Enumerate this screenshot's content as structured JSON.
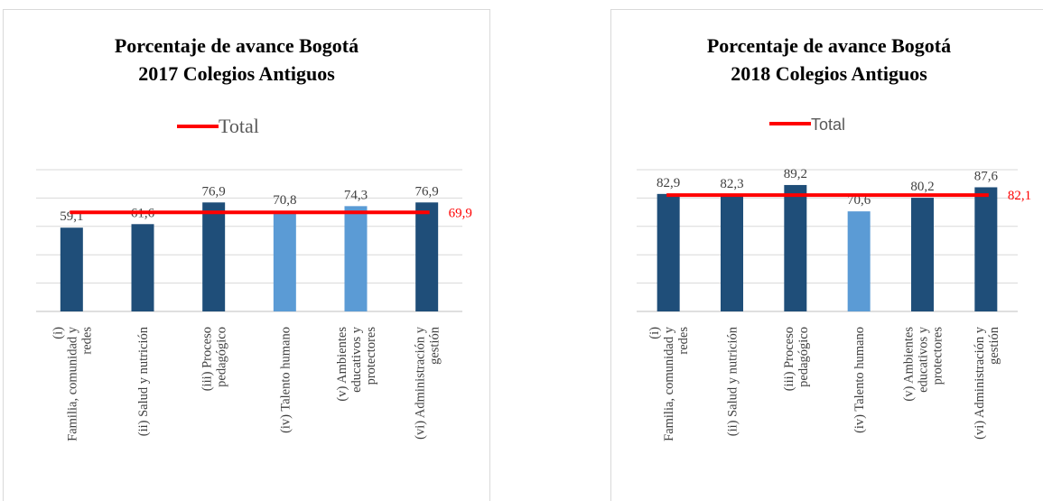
{
  "chart_data": [
    {
      "type": "bar",
      "title": [
        "Porcentaje de avance Bogotá",
        "2017 Colegios Antiguos"
      ],
      "categories": [
        [
          "(i)",
          "Familia, comunidad y",
          "redes"
        ],
        [
          "(ii) Salud y nutrición"
        ],
        [
          "(iii) Proceso",
          "pedagógico"
        ],
        [
          "(iv) Talento humano"
        ],
        [
          "(v) Ambientes",
          "educativos y",
          "protectores"
        ],
        [
          "(vi) Administración y",
          "gestión"
        ]
      ],
      "values": [
        59.1,
        61.6,
        76.9,
        70.8,
        74.3,
        76.9
      ],
      "value_labels": [
        "59,1",
        "61,6",
        "76,9",
        "70,8",
        "74,3",
        "76,9"
      ],
      "colors": [
        "#1f4e79",
        "#1f4e79",
        "#1f4e79",
        "#5b9bd5",
        "#5b9bd5",
        "#1f4e79"
      ],
      "total": {
        "name": "Total",
        "value": 69.9,
        "value_label": "69,9",
        "color": "#ff0000"
      },
      "ylim": [
        0,
        100
      ],
      "yticks": [
        0,
        20,
        40,
        60,
        80,
        100
      ],
      "grid": true
    },
    {
      "type": "bar",
      "title": [
        "Porcentaje de avance Bogotá",
        "2018 Colegios Antiguos"
      ],
      "categories": [
        [
          "(i)",
          "Familia, comunidad y",
          "redes"
        ],
        [
          "(ii) Salud y nutrición"
        ],
        [
          "(iii) Proceso",
          "pedagógico"
        ],
        [
          "(iv) Talento humano"
        ],
        [
          "(v) Ambientes",
          "educativos y",
          "protectores"
        ],
        [
          "(vi) Administración y",
          "gestión"
        ]
      ],
      "values": [
        82.9,
        82.3,
        89.2,
        70.6,
        80.2,
        87.6
      ],
      "value_labels": [
        "82,9",
        "82,3",
        "89,2",
        "70,6",
        "80,2",
        "87,6"
      ],
      "colors": [
        "#1f4e79",
        "#1f4e79",
        "#1f4e79",
        "#5b9bd5",
        "#1f4e79",
        "#1f4e79"
      ],
      "total": {
        "name": "Total",
        "value": 82.1,
        "value_label": "82,1",
        "color": "#ff0000"
      },
      "ylim": [
        0,
        100
      ],
      "yticks": [
        0,
        20,
        40,
        60,
        80,
        100
      ],
      "grid": true
    }
  ]
}
